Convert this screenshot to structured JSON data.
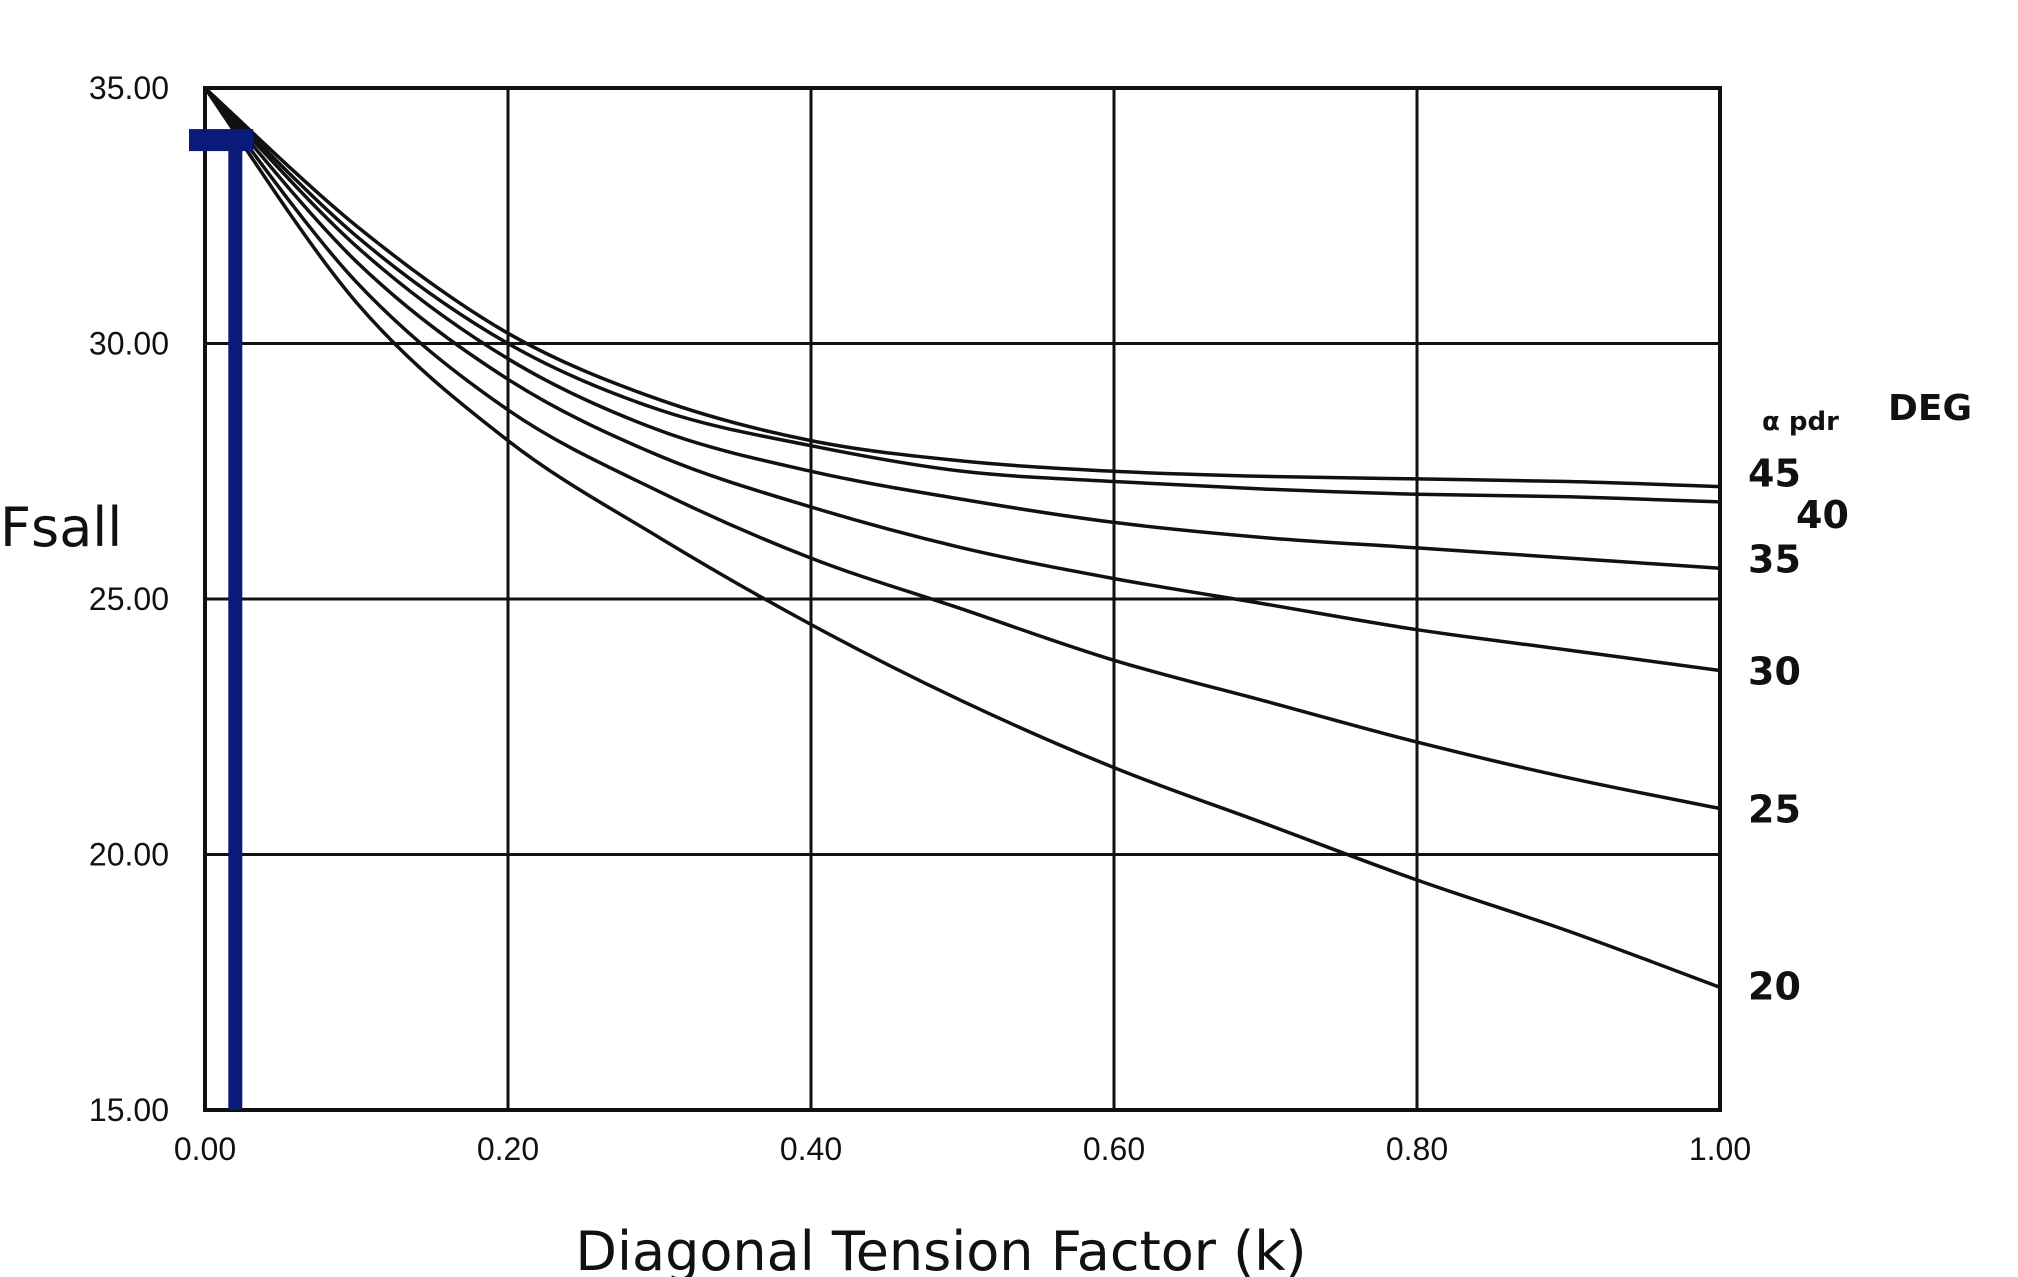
{
  "chart_data": {
    "type": "line",
    "title": "",
    "xlabel": "Diagonal Tension Factor (k)",
    "ylabel": "Fsall",
    "xlim": [
      0,
      1
    ],
    "ylim": [
      15,
      35
    ],
    "x_ticks": [
      "0.00",
      "0.20",
      "0.40",
      "0.60",
      "0.80",
      "1.00"
    ],
    "y_ticks": [
      "15.00",
      "20.00",
      "25.00",
      "30.00",
      "35.00"
    ],
    "grid": true,
    "legend_title": "DEG",
    "legend_title_sub": "α pdr",
    "line_color": "#111111",
    "marker_color": "#0a1a78",
    "series": [
      {
        "name": "45",
        "x": [
          0,
          0.1,
          0.2,
          0.3,
          0.4,
          0.5,
          0.6,
          0.7,
          0.8,
          0.9,
          1.0
        ],
        "values": [
          35.0,
          32.3,
          30.2,
          28.9,
          28.1,
          27.7,
          27.5,
          27.4,
          27.35,
          27.3,
          27.2
        ]
      },
      {
        "name": "40",
        "x": [
          0,
          0.1,
          0.2,
          0.3,
          0.4,
          0.5,
          0.6,
          0.7,
          0.8,
          0.9,
          1.0
        ],
        "values": [
          35.0,
          32.1,
          30.0,
          28.7,
          28.0,
          27.5,
          27.3,
          27.15,
          27.05,
          27.0,
          26.9
        ]
      },
      {
        "name": "35",
        "x": [
          0,
          0.1,
          0.2,
          0.3,
          0.4,
          0.5,
          0.6,
          0.7,
          0.8,
          0.9,
          1.0
        ],
        "values": [
          35.0,
          31.9,
          29.7,
          28.3,
          27.5,
          26.95,
          26.5,
          26.2,
          26.0,
          25.8,
          25.6
        ]
      },
      {
        "name": "30",
        "x": [
          0,
          0.1,
          0.2,
          0.3,
          0.4,
          0.5,
          0.6,
          0.7,
          0.8,
          0.9,
          1.0
        ],
        "values": [
          35.0,
          31.6,
          29.3,
          27.8,
          26.8,
          26.0,
          25.4,
          24.9,
          24.4,
          24.0,
          23.6
        ]
      },
      {
        "name": "25",
        "x": [
          0,
          0.1,
          0.2,
          0.3,
          0.4,
          0.5,
          0.6,
          0.7,
          0.8,
          0.9,
          1.0
        ],
        "values": [
          35.0,
          31.2,
          28.7,
          27.1,
          25.8,
          24.8,
          23.8,
          23.0,
          22.2,
          21.5,
          20.9
        ]
      },
      {
        "name": "20",
        "x": [
          0,
          0.1,
          0.2,
          0.3,
          0.4,
          0.5,
          0.6,
          0.7,
          0.8,
          0.9,
          1.0
        ],
        "values": [
          35.0,
          30.8,
          28.1,
          26.2,
          24.5,
          23.0,
          21.7,
          20.6,
          19.5,
          18.5,
          17.4
        ]
      }
    ],
    "marker": {
      "k": 0.02,
      "fsall": 34.0
    }
  }
}
